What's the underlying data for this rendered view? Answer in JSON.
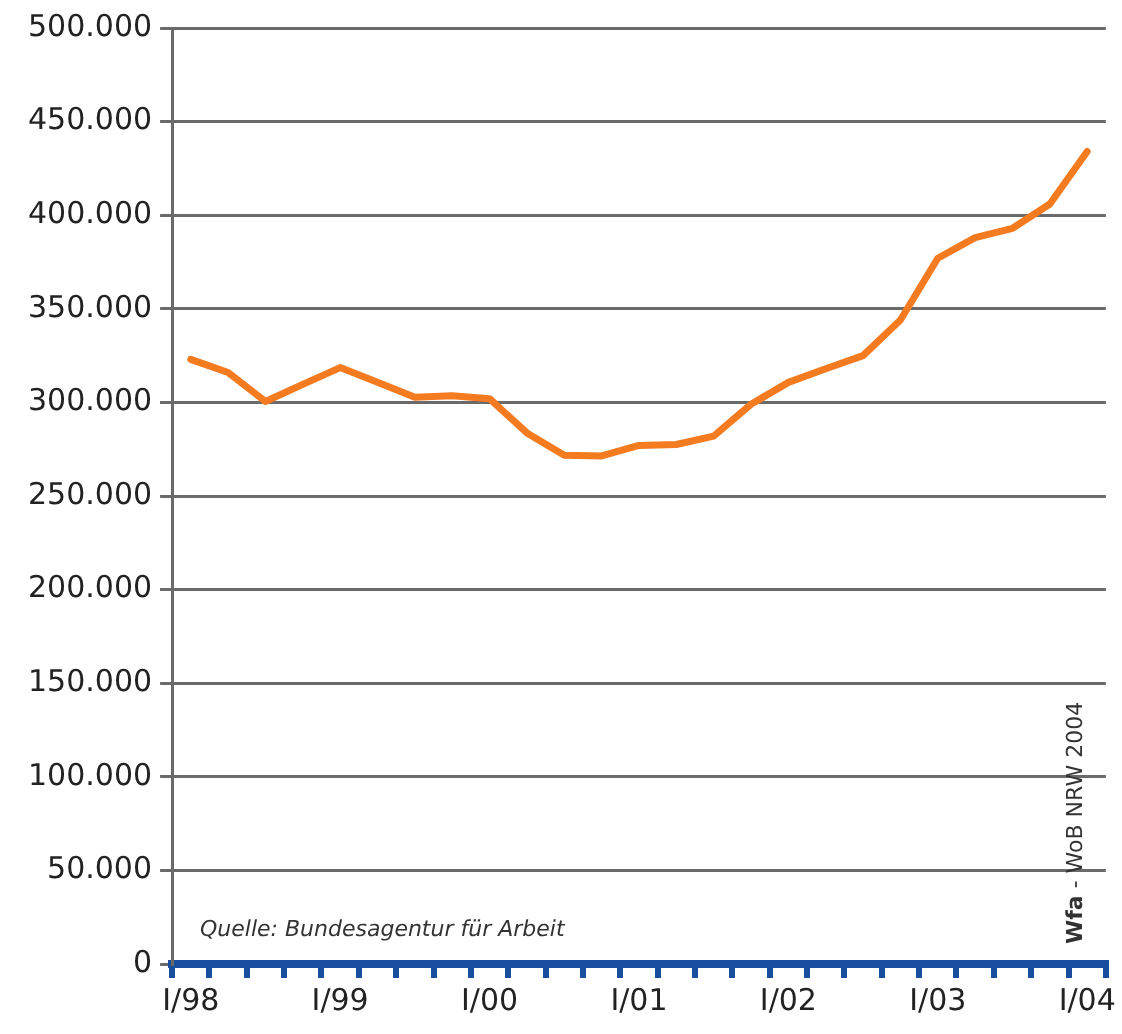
{
  "chart_data": {
    "type": "line",
    "categories": [
      "I/98",
      null,
      null,
      null,
      "I/99",
      null,
      null,
      null,
      "I/00",
      null,
      null,
      null,
      "I/01",
      null,
      null,
      null,
      "I/02",
      null,
      null,
      null,
      "I/03",
      null,
      null,
      null,
      "I/04"
    ],
    "series": [
      {
        "color": "#f47b20",
        "values": [
          323000,
          316000,
          300500,
          309600,
          318600,
          310700,
          302700,
          303500,
          302000,
          283700,
          271800,
          271400,
          277000,
          277500,
          282000,
          299000,
          310700,
          318000,
          325000,
          344000,
          377000,
          388000,
          393000,
          406000,
          434000
        ]
      }
    ],
    "ylim": [
      0,
      500000
    ],
    "yticks": [
      0,
      {
        "value": 50000,
        "label": "50.000"
      },
      {
        "value": 100000,
        "label": "100.000"
      },
      {
        "value": 150000,
        "label": "150.000"
      },
      {
        "value": 200000,
        "label": "200.000"
      },
      {
        "value": 250000,
        "label": "250.000"
      },
      {
        "value": 300000,
        "label": "300.000"
      },
      {
        "value": 350000,
        "label": "350.000"
      },
      {
        "value": 400000,
        "label": "400.000"
      },
      {
        "value": 450000,
        "label": "450.000"
      },
      {
        "value": 500000,
        "label": "500.000"
      }
    ],
    "grid": "y",
    "legend": false,
    "marker": "none",
    "line_style": "solid",
    "annotations": [
      "Quelle: Bundesagentur für Arbeit",
      "Wfa - WoB NRW 2004"
    ]
  }
}
